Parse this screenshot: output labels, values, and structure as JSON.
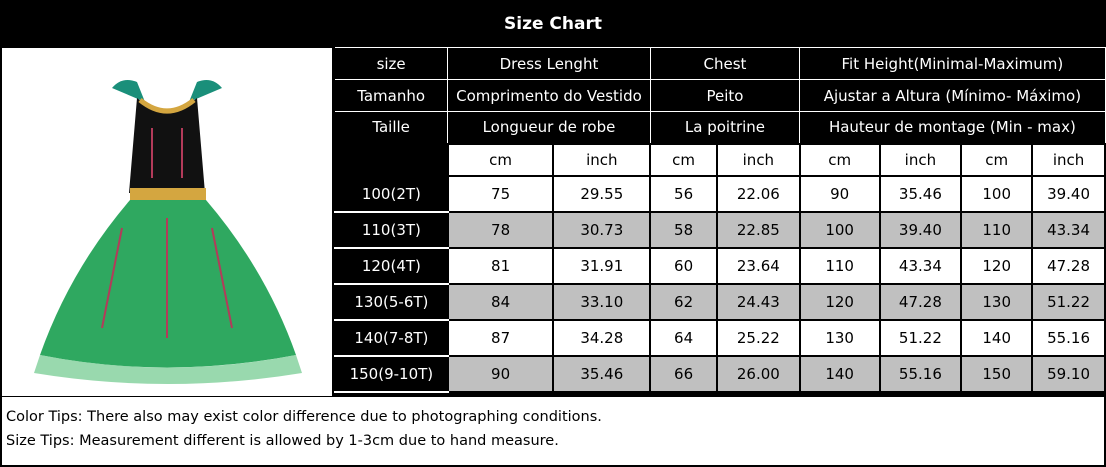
{
  "title": "Size Chart",
  "header_rows": [
    [
      "size",
      "Dress Lenght",
      "Chest",
      "Fit Height(Minimal-Maximum)"
    ],
    [
      "Tamanho",
      "Comprimento do Vestido",
      "Peito",
      "Ajustar a Altura (Mínimo- Máximo)"
    ],
    [
      "Taille",
      "Longueur de robe",
      "La poitrine",
      "Hauteur de montage (Min - max)"
    ]
  ],
  "units": [
    "cm",
    "inch",
    "cm",
    "inch",
    "cm",
    "inch",
    "cm",
    "inch"
  ],
  "rows": [
    [
      "100(2T)",
      "75",
      "29.55",
      "56",
      "22.06",
      "90",
      "35.46",
      "100",
      "39.40"
    ],
    [
      "110(3T)",
      "78",
      "30.73",
      "58",
      "22.85",
      "100",
      "39.40",
      "110",
      "43.34"
    ],
    [
      "120(4T)",
      "81",
      "31.91",
      "60",
      "23.64",
      "110",
      "43.34",
      "120",
      "47.28"
    ],
    [
      "130(5-6T)",
      "84",
      "33.10",
      "62",
      "24.43",
      "120",
      "47.28",
      "130",
      "51.22"
    ],
    [
      "140(7-8T)",
      "87",
      "34.28",
      "64",
      "25.22",
      "130",
      "51.22",
      "140",
      "55.16"
    ],
    [
      "150(9-10T)",
      "90",
      "35.46",
      "66",
      "26.00",
      "140",
      "55.16",
      "150",
      "59.10"
    ]
  ],
  "tips": [
    "Color Tips: There also may exist color difference due to photographing conditions.",
    "Size Tips: Measurement different is allowed by 1-3cm due to hand measure."
  ],
  "colors": {
    "header_bg": "#000000",
    "alt_row": "#c0c0c0",
    "dress_green": "#2fa860"
  }
}
